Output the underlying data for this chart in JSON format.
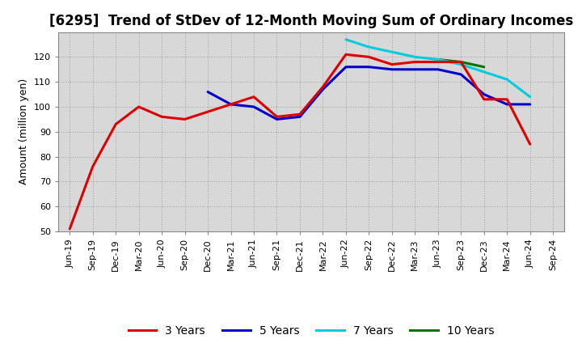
{
  "title": "[6295]  Trend of StDev of 12-Month Moving Sum of Ordinary Incomes",
  "ylabel": "Amount (million yen)",
  "ylim": [
    50,
    130
  ],
  "yticks": [
    50,
    60,
    70,
    80,
    90,
    100,
    110,
    120
  ],
  "background_color": "#ffffff",
  "plot_bg_color": "#d8d8d8",
  "series": {
    "3years": {
      "color": "#dd0000",
      "label": "3 Years",
      "x": [
        "Jun-19",
        "Sep-19",
        "Dec-19",
        "Mar-20",
        "Jun-20",
        "Sep-20",
        "Dec-20",
        "Mar-21",
        "Jun-21",
        "Sep-21",
        "Dec-21",
        "Mar-22",
        "Jun-22",
        "Sep-22",
        "Dec-22",
        "Mar-23",
        "Jun-23",
        "Sep-23",
        "Dec-23",
        "Mar-24",
        "Jun-24"
      ],
      "y": [
        51,
        76,
        93,
        100,
        96,
        95,
        98,
        101,
        104,
        96,
        97,
        108,
        121,
        120,
        117,
        118,
        118,
        118,
        103,
        103,
        85
      ]
    },
    "5years": {
      "color": "#0000cc",
      "label": "5 Years",
      "x": [
        "Dec-20",
        "Mar-21",
        "Jun-21",
        "Sep-21",
        "Dec-21",
        "Mar-22",
        "Jun-22",
        "Sep-22",
        "Dec-22",
        "Mar-23",
        "Jun-23",
        "Sep-23",
        "Dec-23",
        "Mar-24",
        "Jun-24"
      ],
      "y": [
        106,
        101,
        100,
        95,
        96,
        107,
        116,
        116,
        115,
        115,
        115,
        113,
        105,
        101,
        101
      ]
    },
    "7years": {
      "color": "#00ccdd",
      "label": "7 Years",
      "x": [
        "Jun-22",
        "Sep-22",
        "Dec-22",
        "Mar-23",
        "Jun-23",
        "Sep-23",
        "Dec-23",
        "Mar-24",
        "Jun-24"
      ],
      "y": [
        127,
        124,
        122,
        120,
        119,
        117,
        114,
        111,
        104
      ]
    },
    "10years": {
      "color": "#007700",
      "label": "10 Years",
      "x": [
        "Jun-23",
        "Sep-23",
        "Dec-23"
      ],
      "y": [
        119,
        118,
        116
      ]
    }
  },
  "xtick_labels": [
    "Jun-19",
    "Sep-19",
    "Dec-19",
    "Mar-20",
    "Jun-20",
    "Sep-20",
    "Dec-20",
    "Mar-21",
    "Jun-21",
    "Sep-21",
    "Dec-21",
    "Mar-22",
    "Jun-22",
    "Sep-22",
    "Dec-22",
    "Mar-23",
    "Jun-23",
    "Sep-23",
    "Dec-23",
    "Mar-24",
    "Jun-24",
    "Sep-24"
  ],
  "linewidth": 2.2,
  "title_fontsize": 12,
  "legend_fontsize": 10,
  "axis_label_fontsize": 9,
  "tick_fontsize": 8
}
